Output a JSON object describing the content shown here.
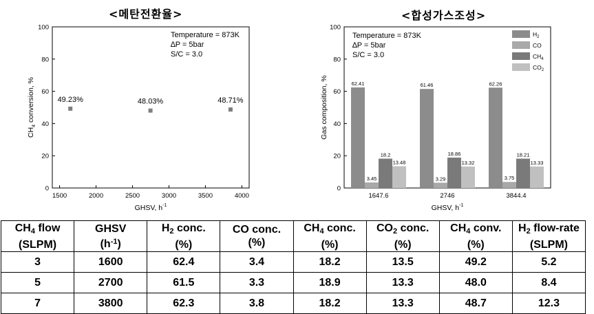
{
  "chart_data": [
    {
      "type": "scatter",
      "title": "<메탄전환율>",
      "x": [
        1647.6,
        2746,
        3844.4
      ],
      "y": [
        49.23,
        48.03,
        48.71
      ],
      "point_labels": [
        "49.23%",
        "48.03%",
        "48.71%"
      ],
      "xlabel": "GHSV, h",
      "xlabel_sup": "-1",
      "ylabel": "CH",
      "ylabel_sub": "4",
      "ylabel_rest": " conversion, %",
      "xlim": [
        1400,
        4100
      ],
      "ylim": [
        0,
        100
      ],
      "xticks": [
        "1500",
        "2000",
        "2500",
        "3000",
        "3500",
        "4000"
      ],
      "yticks": [
        "0",
        "20",
        "40",
        "60",
        "80",
        "100"
      ],
      "annotations": [
        "Temperature = 873K",
        "∆P = 5bar",
        "S/C = 3.0"
      ],
      "marker_color": "#7f7f7f"
    },
    {
      "type": "bar",
      "title": "<합성가스조성>",
      "categories": [
        "1647.6",
        "2746",
        "3844.4"
      ],
      "series": [
        {
          "name": "H",
          "sub": "2",
          "color": "#8c8c8c",
          "values": [
            62.41,
            61.46,
            62.26
          ],
          "labels": [
            "62.41",
            "61.46",
            "62.26"
          ]
        },
        {
          "name": "CO",
          "sub": "",
          "color": "#a9a9a9",
          "values": [
            3.45,
            3.29,
            3.75
          ],
          "labels": [
            "3.45",
            "3.29",
            "3.75"
          ]
        },
        {
          "name": "CH",
          "sub": "4",
          "color": "#7a7a7a",
          "values": [
            18.2,
            18.86,
            18.21
          ],
          "labels": [
            "18.2",
            "18.86",
            "18.21"
          ]
        },
        {
          "name": "CO",
          "sub": "2",
          "color": "#c0c0c0",
          "values": [
            13.48,
            13.32,
            13.33
          ],
          "labels": [
            "13.48",
            "13.32",
            "13.33"
          ]
        }
      ],
      "xlabel": "GHSV, h",
      "xlabel_sup": "-1",
      "ylabel": "Gas composition, %",
      "ylim": [
        0,
        100
      ],
      "yticks": [
        "0",
        "20",
        "40",
        "60",
        "80",
        "100"
      ],
      "annotations": [
        "Temperature = 873K",
        "∆P = 5bar",
        "S/C = 3.0"
      ],
      "legend_position": "top-right"
    }
  ],
  "table": {
    "headers": [
      {
        "main": "CH",
        "sub": "4",
        "rest": " flow",
        "line2": "(SLPM)",
        "sup": ""
      },
      {
        "main": "GHSV",
        "sub": "",
        "rest": "",
        "line2": "(h",
        "sup": "-1",
        "line2_end": ")"
      },
      {
        "main": "H",
        "sub": "2",
        "rest": " conc.",
        "line2": "(%)",
        "sup": ""
      },
      {
        "main": "CO conc.",
        "sub": "",
        "rest": "",
        "line2": "(%)",
        "sup": ""
      },
      {
        "main": "CH",
        "sub": "4",
        "rest": " conc.",
        "line2": "(%)",
        "sup": ""
      },
      {
        "main": "CO",
        "sub": "2",
        "rest": " conc.",
        "line2": "(%)",
        "sup": ""
      },
      {
        "main": "CH",
        "sub": "4",
        "rest": " conv.",
        "line2": "(%)",
        "sup": ""
      },
      {
        "main": "H",
        "sub": "2",
        "rest": " flow-rate",
        "line2": "(SLPM)",
        "sup": ""
      }
    ],
    "rows": [
      [
        "3",
        "1600",
        "62.4",
        "3.4",
        "18.2",
        "13.5",
        "49.2",
        "5.2"
      ],
      [
        "5",
        "2700",
        "61.5",
        "3.3",
        "18.9",
        "13.3",
        "48.0",
        "8.4"
      ],
      [
        "7",
        "3800",
        "62.3",
        "3.8",
        "18.2",
        "13.3",
        "48.7",
        "12.3"
      ]
    ]
  }
}
